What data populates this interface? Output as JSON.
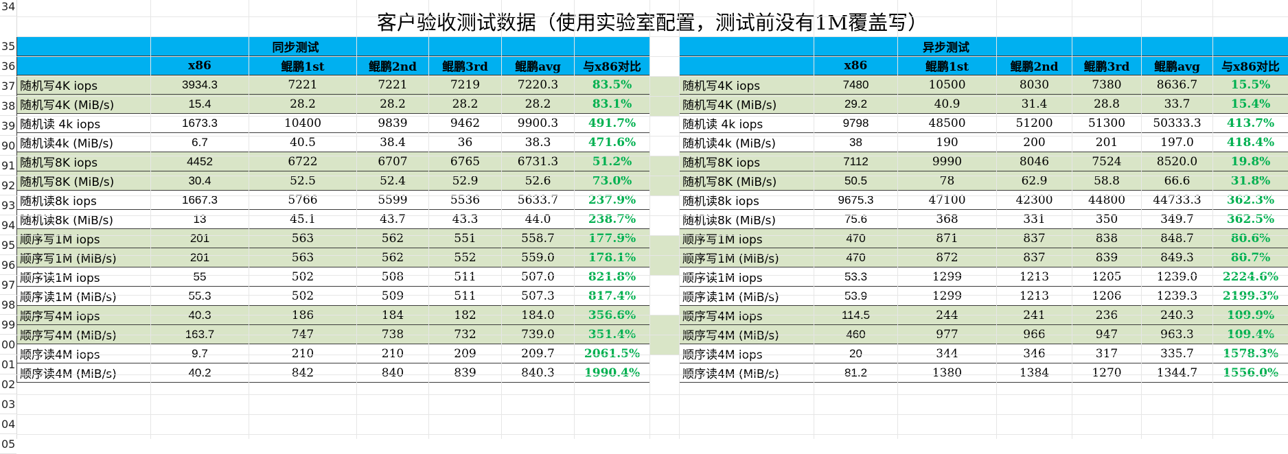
{
  "row_numbers": [
    "34",
    "35",
    "36",
    "37",
    "38",
    "39",
    "90",
    "91",
    "92",
    "93",
    "94",
    "95",
    "96",
    "97",
    "98",
    "99",
    "00",
    "01",
    "02",
    "03",
    "04",
    "05"
  ],
  "title": "客户验收测试数据（使用实验室配置，测试前没有1M覆盖写）",
  "sync": {
    "section_title": "同步测试",
    "columns": [
      "",
      "x86",
      "鲲鹏1st",
      "鲲鹏2nd",
      "鲲鹏3rd",
      "鲲鹏avg",
      "与x86对比"
    ],
    "rows": [
      {
        "label": "随机写4K iops",
        "x86": "3934.3",
        "r1": "7221",
        "r2": "7221",
        "r3": "7219",
        "avg": "7220.3",
        "ratio": "83.5%"
      },
      {
        "label": "随机写4K (MiB/s)",
        "x86": "15.4",
        "r1": "28.2",
        "r2": "28.2",
        "r3": "28.2",
        "avg": "28.2",
        "ratio": "83.1%"
      },
      {
        "label": "随机读 4k iops",
        "x86": "1673.3",
        "r1": "10400",
        "r2": "9839",
        "r3": "9462",
        "avg": "9900.3",
        "ratio": "491.7%"
      },
      {
        "label": "随机读4k (MiB/s)",
        "x86": "6.7",
        "r1": "40.5",
        "r2": "38.4",
        "r3": "36",
        "avg": "38.3",
        "ratio": "471.6%"
      },
      {
        "label": "随机写8K iops",
        "x86": "4452",
        "r1": "6722",
        "r2": "6707",
        "r3": "6765",
        "avg": "6731.3",
        "ratio": "51.2%"
      },
      {
        "label": "随机写8K (MiB/s)",
        "x86": "30.4",
        "r1": "52.5",
        "r2": "52.4",
        "r3": "52.9",
        "avg": "52.6",
        "ratio": "73.0%"
      },
      {
        "label": "随机读8k iops",
        "x86": "1667.3",
        "r1": "5766",
        "r2": "5599",
        "r3": "5536",
        "avg": "5633.7",
        "ratio": "237.9%"
      },
      {
        "label": "随机读8k (MiB/s)",
        "x86": "13",
        "r1": "45.1",
        "r2": "43.7",
        "r3": "43.3",
        "avg": "44.0",
        "ratio": "238.7%"
      },
      {
        "label": "顺序写1M iops",
        "x86": "201",
        "r1": "563",
        "r2": "562",
        "r3": "551",
        "avg": "558.7",
        "ratio": "177.9%"
      },
      {
        "label": "顺序写1M (MiB/s)",
        "x86": "201",
        "r1": "563",
        "r2": "562",
        "r3": "552",
        "avg": "559.0",
        "ratio": "178.1%"
      },
      {
        "label": "顺序读1M iops",
        "x86": "55",
        "r1": "502",
        "r2": "508",
        "r3": "511",
        "avg": "507.0",
        "ratio": "821.8%"
      },
      {
        "label": "顺序读1M (MiB/s)",
        "x86": "55.3",
        "r1": "502",
        "r2": "509",
        "r3": "511",
        "avg": "507.3",
        "ratio": "817.4%"
      },
      {
        "label": "顺序写4M iops",
        "x86": "40.3",
        "r1": "186",
        "r2": "184",
        "r3": "182",
        "avg": "184.0",
        "ratio": "356.6%"
      },
      {
        "label": "顺序写4M (MiB/s)",
        "x86": "163.7",
        "r1": "747",
        "r2": "738",
        "r3": "732",
        "avg": "739.0",
        "ratio": "351.4%"
      },
      {
        "label": "顺序读4M iops",
        "x86": "9.7",
        "r1": "210",
        "r2": "210",
        "r3": "209",
        "avg": "209.7",
        "ratio": "2061.5%"
      },
      {
        "label": "顺序读4M (MiB/s)",
        "x86": "40.2",
        "r1": "842",
        "r2": "840",
        "r3": "839",
        "avg": "840.3",
        "ratio": "1990.4%"
      }
    ]
  },
  "async": {
    "section_title": "异步测试",
    "columns": [
      "",
      "x86",
      "鲲鹏1st",
      "鲲鹏2nd",
      "鲲鹏3rd",
      "鲲鹏avg",
      "与x86对比"
    ],
    "rows": [
      {
        "label": "随机写4K iops",
        "x86": "7480",
        "r1": "10500",
        "r2": "8030",
        "r3": "7380",
        "avg": "8636.7",
        "ratio": "15.5%"
      },
      {
        "label": "随机写4K (MiB/s)",
        "x86": "29.2",
        "r1": "40.9",
        "r2": "31.4",
        "r3": "28.8",
        "avg": "33.7",
        "ratio": "15.4%"
      },
      {
        "label": "随机读 4k iops",
        "x86": "9798",
        "r1": "48500",
        "r2": "51200",
        "r3": "51300",
        "avg": "50333.3",
        "ratio": "413.7%"
      },
      {
        "label": "随机读4k (MiB/s)",
        "x86": "38",
        "r1": "190",
        "r2": "200",
        "r3": "201",
        "avg": "197.0",
        "ratio": "418.4%"
      },
      {
        "label": "随机写8K iops",
        "x86": "7112",
        "r1": "9990",
        "r2": "8046",
        "r3": "7524",
        "avg": "8520.0",
        "ratio": "19.8%"
      },
      {
        "label": "随机写8K (MiB/s)",
        "x86": "50.5",
        "r1": "78",
        "r2": "62.9",
        "r3": "58.8",
        "avg": "66.6",
        "ratio": "31.8%"
      },
      {
        "label": "随机读8k iops",
        "x86": "9675.3",
        "r1": "47100",
        "r2": "42300",
        "r3": "44800",
        "avg": "44733.3",
        "ratio": "362.3%"
      },
      {
        "label": "随机读8k (MiB/s)",
        "x86": "75.6",
        "r1": "368",
        "r2": "331",
        "r3": "350",
        "avg": "349.7",
        "ratio": "362.5%"
      },
      {
        "label": "顺序写1M iops",
        "x86": "470",
        "r1": "871",
        "r2": "837",
        "r3": "838",
        "avg": "848.7",
        "ratio": "80.6%"
      },
      {
        "label": "顺序写1M (MiB/s)",
        "x86": "470",
        "r1": "872",
        "r2": "837",
        "r3": "839",
        "avg": "849.3",
        "ratio": "80.7%"
      },
      {
        "label": "顺序读1M iops",
        "x86": "53.3",
        "r1": "1299",
        "r2": "1213",
        "r3": "1205",
        "avg": "1239.0",
        "ratio": "2224.6%"
      },
      {
        "label": "顺序读1M (MiB/s)",
        "x86": "53.9",
        "r1": "1299",
        "r2": "1213",
        "r3": "1206",
        "avg": "1239.3",
        "ratio": "2199.3%"
      },
      {
        "label": "顺序写4M iops",
        "x86": "114.5",
        "r1": "244",
        "r2": "241",
        "r3": "236",
        "avg": "240.3",
        "ratio": "109.9%"
      },
      {
        "label": "顺序写4M (MiB/s)",
        "x86": "460",
        "r1": "977",
        "r2": "966",
        "r3": "947",
        "avg": "963.3",
        "ratio": "109.4%"
      },
      {
        "label": "顺序读4M iops",
        "x86": "20",
        "r1": "344",
        "r2": "346",
        "r3": "317",
        "avg": "335.7",
        "ratio": "1578.3%"
      },
      {
        "label": "顺序读4M (MiB/s)",
        "x86": "81.2",
        "r1": "1380",
        "r2": "1384",
        "r3": "1270",
        "avg": "1344.7",
        "ratio": "1556.0%"
      }
    ]
  },
  "colors": {
    "header_blue": "#00b0f0",
    "row_green": "#d9e5c7",
    "ratio_green": "#00b050"
  }
}
